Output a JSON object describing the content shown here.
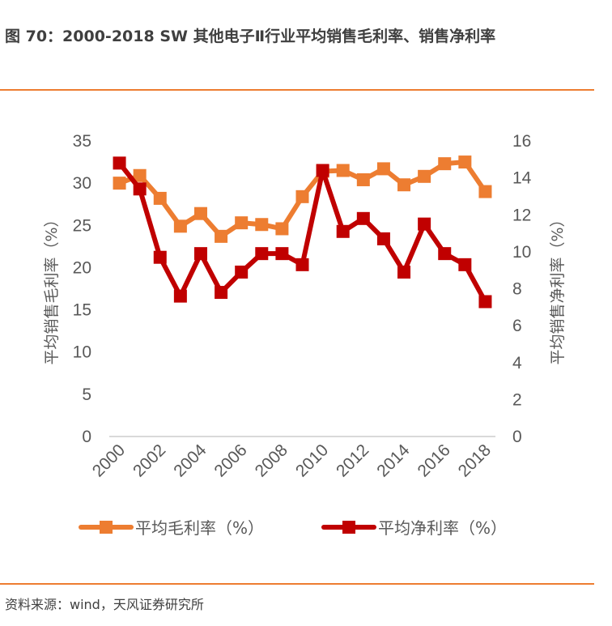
{
  "header": {
    "title": "图 70：2000-2018 SW 其他电子Ⅱ行业平均销售毛利率、销售净利率"
  },
  "footer": {
    "source": "资料来源：wind，天风证券研究所"
  },
  "colors": {
    "accent_rule": "#ed7d31",
    "gross_margin": "#ed7d31",
    "net_margin": "#c00000",
    "axis_line": "#d9d9d9",
    "text": "#595959"
  },
  "chart_data": {
    "type": "line",
    "title": "2000-2018 SW 其他电子Ⅱ行业平均销售毛利率、销售净利率",
    "x": [
      "2000",
      "2001",
      "2002",
      "2003",
      "2004",
      "2005",
      "2006",
      "2007",
      "2008",
      "2009",
      "2010",
      "2011",
      "2012",
      "2013",
      "2014",
      "2015",
      "2016",
      "2017",
      "2018"
    ],
    "x_tick_labels": [
      "2000",
      "2002",
      "2004",
      "2006",
      "2008",
      "2010",
      "2012",
      "2014",
      "2016",
      "2018"
    ],
    "y_left": {
      "label": "平均销售毛利率（%）",
      "range": [
        0,
        35
      ],
      "ticks": [
        "0",
        "5",
        "10",
        "15",
        "20",
        "25",
        "30",
        "35"
      ]
    },
    "y_right": {
      "label": "平均销售净利率（%）",
      "range": [
        0,
        16
      ],
      "ticks": [
        "0",
        "2",
        "4",
        "6",
        "8",
        "10",
        "12",
        "14",
        "16"
      ]
    },
    "series": [
      {
        "name": "平均毛利率（%）",
        "axis": "left",
        "color": "#ed7d31",
        "values": [
          30.0,
          30.9,
          28.2,
          24.9,
          26.4,
          23.7,
          25.3,
          25.1,
          24.6,
          28.4,
          31.4,
          31.5,
          30.4,
          31.7,
          29.8,
          30.8,
          32.3,
          32.5,
          29.0
        ]
      },
      {
        "name": "平均净利率（%）",
        "axis": "right",
        "color": "#c00000",
        "values": [
          14.8,
          13.4,
          9.7,
          7.6,
          9.9,
          7.8,
          8.9,
          9.9,
          9.9,
          9.3,
          14.4,
          11.1,
          11.8,
          10.7,
          8.9,
          11.5,
          9.9,
          9.3,
          7.3
        ]
      }
    ],
    "grid": false,
    "legend": "bottom"
  }
}
